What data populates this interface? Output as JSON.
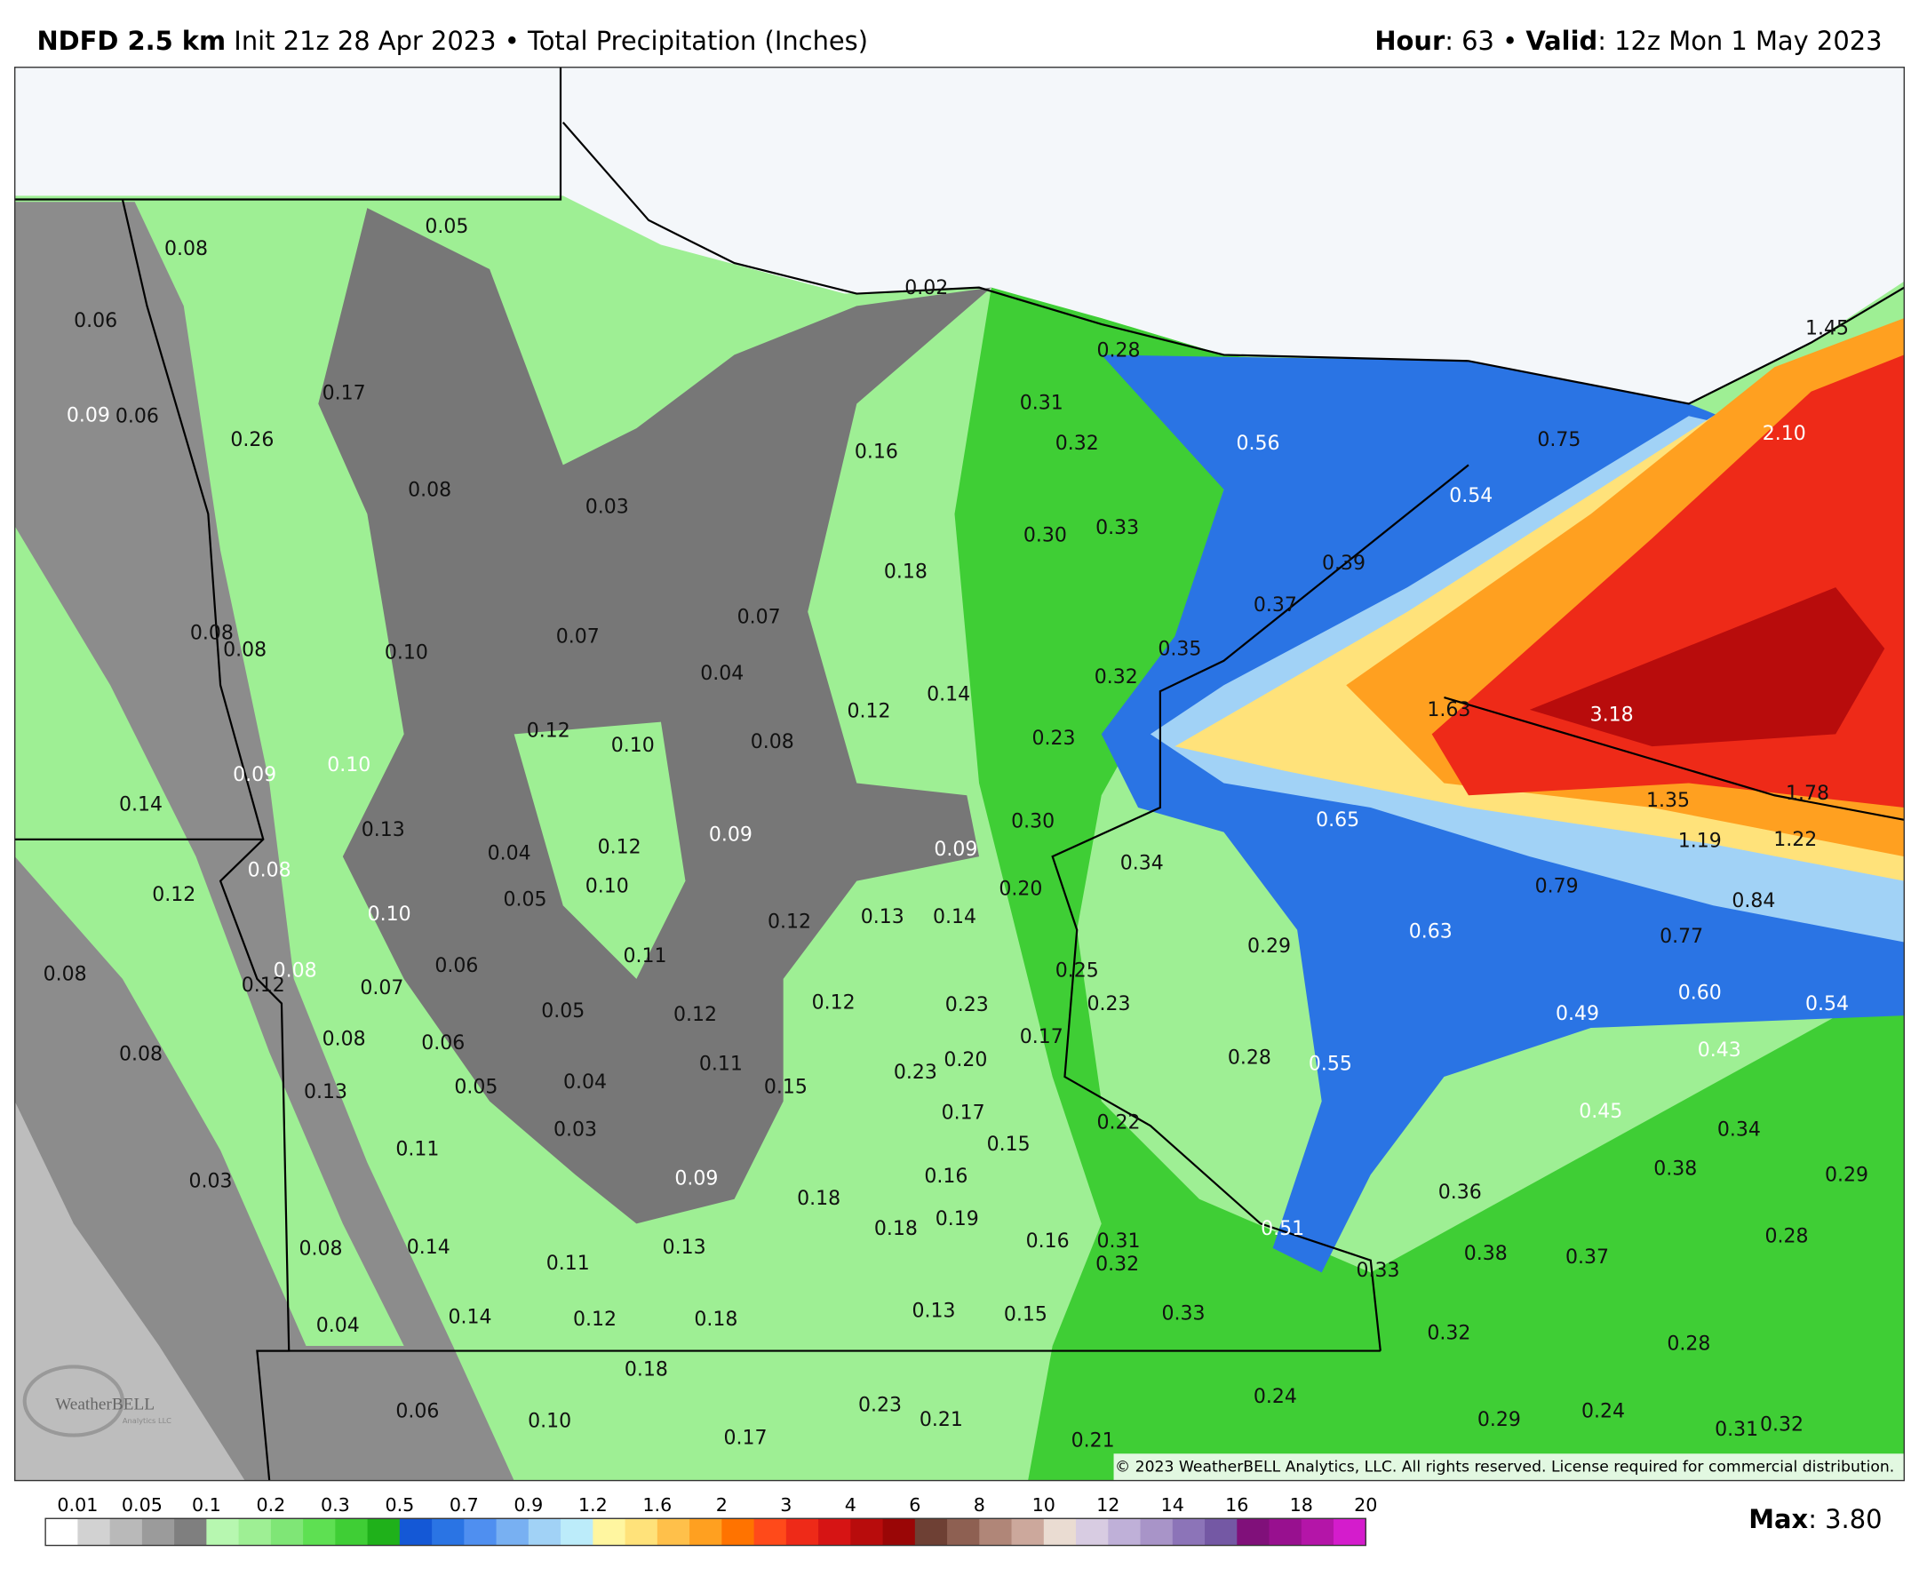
{
  "header": {
    "model": "NDFD 2.5 km",
    "init": "Init 21z 28 Apr 2023 • Total Precipitation (Inches)",
    "hour_label": "Hour",
    "hour_value": ": 63 •",
    "valid_label": "Valid",
    "valid_value": ": 12z Mon 1 May 2023"
  },
  "labels": [
    "0.05",
    "0.08",
    "0.06",
    "0.17",
    "0.09",
    "0.06",
    "0.26",
    "0.08",
    "0.03",
    "0.16",
    "0.31",
    "0.32",
    "0.28",
    "0.02",
    "0.56",
    "0.75",
    "0.54",
    "1.45",
    "2.10",
    "0.30",
    "0.33",
    "0.18",
    "0.39",
    "0.37",
    "0.08",
    "0.08",
    "0.10",
    "0.07",
    "0.07",
    "0.35",
    "0.04",
    "0.32",
    "0.14",
    "0.12",
    "1.63",
    "3.18",
    "0.12",
    "0.10",
    "0.08",
    "0.23",
    "0.09",
    "0.10",
    "0.14",
    "1.35",
    "1.78",
    "0.13",
    "0.04",
    "0.12",
    "0.09",
    "0.30",
    "0.09",
    "0.65",
    "0.34",
    "1.19",
    "1.22",
    "0.08",
    "0.12",
    "0.05",
    "0.10",
    "0.10",
    "0.12",
    "0.13",
    "0.14",
    "0.20",
    "0.79",
    "0.84",
    "0.63",
    "0.77",
    "0.29",
    "0.08",
    "0.12",
    "0.08",
    "0.07",
    "0.06",
    "0.11",
    "0.25",
    "0.05",
    "0.12",
    "0.12",
    "0.23",
    "0.23",
    "0.49",
    "0.60",
    "0.54",
    "0.08",
    "0.06",
    "0.17",
    "0.43",
    "0.08",
    "0.13",
    "0.05",
    "0.04",
    "0.11",
    "0.15",
    "0.23",
    "0.20",
    "0.28",
    "0.55",
    "0.17",
    "0.22",
    "0.45",
    "0.34",
    "0.03",
    "0.11",
    "0.15",
    "0.03",
    "0.09",
    "0.16",
    "0.38",
    "0.29",
    "0.36",
    "0.18",
    "0.18",
    "0.19",
    "0.51",
    "0.28",
    "0.08",
    "0.14",
    "0.11",
    "0.13",
    "0.16",
    "0.31",
    "0.32",
    "0.33",
    "0.38",
    "0.37",
    "0.13",
    "0.15",
    "0.33",
    "0.04",
    "0.14",
    "0.12",
    "0.18",
    "0.32",
    "0.28",
    "0.18",
    "0.24",
    "0.23",
    "0.06",
    "0.10",
    "0.21",
    "0.29",
    "0.24",
    "0.31",
    "0.32",
    "0.17",
    "0.21"
  ],
  "copyright": "© 2023 WeatherBELL Analytics, LLC. All rights reserved. License required for commercial distribution.",
  "logo": {
    "name": "WeatherBELL",
    "sub": "Analytics LLC"
  },
  "legend": {
    "ticks": [
      "0.01",
      "0.05",
      "0.1",
      "0.2",
      "0.3",
      "0.5",
      "0.7",
      "0.9",
      "1.2",
      "1.6",
      "2",
      "3",
      "4",
      "6",
      "8",
      "10",
      "12",
      "14",
      "16",
      "18",
      "20"
    ],
    "colors": [
      "#ffffff",
      "#d2d2d2",
      "#b9b9b9",
      "#9b9b9b",
      "#7f7f7f",
      "#b7f7b0",
      "#9eef94",
      "#7fe676",
      "#5ee052",
      "#3fce35",
      "#1fb11a",
      "#1458d6",
      "#2a74e4",
      "#4f8ff0",
      "#78b0f2",
      "#a1d2f6",
      "#bcecfa",
      "#fff6a0",
      "#ffe27a",
      "#ffc04a",
      "#ffa020",
      "#ff7300",
      "#ff4a1a",
      "#ee2a18",
      "#d61414",
      "#b80c0c",
      "#9a0606",
      "#6e4034",
      "#8e6052",
      "#b08678",
      "#cca89c",
      "#eadcd2",
      "#d8cce2",
      "#bfb0d8",
      "#a894c8",
      "#8c74b8",
      "#7458a4",
      "#80107a",
      "#98108f",
      "#b415a8",
      "#d41ccc"
    ]
  },
  "max": {
    "label": "Max",
    "value": ": 3.80"
  }
}
